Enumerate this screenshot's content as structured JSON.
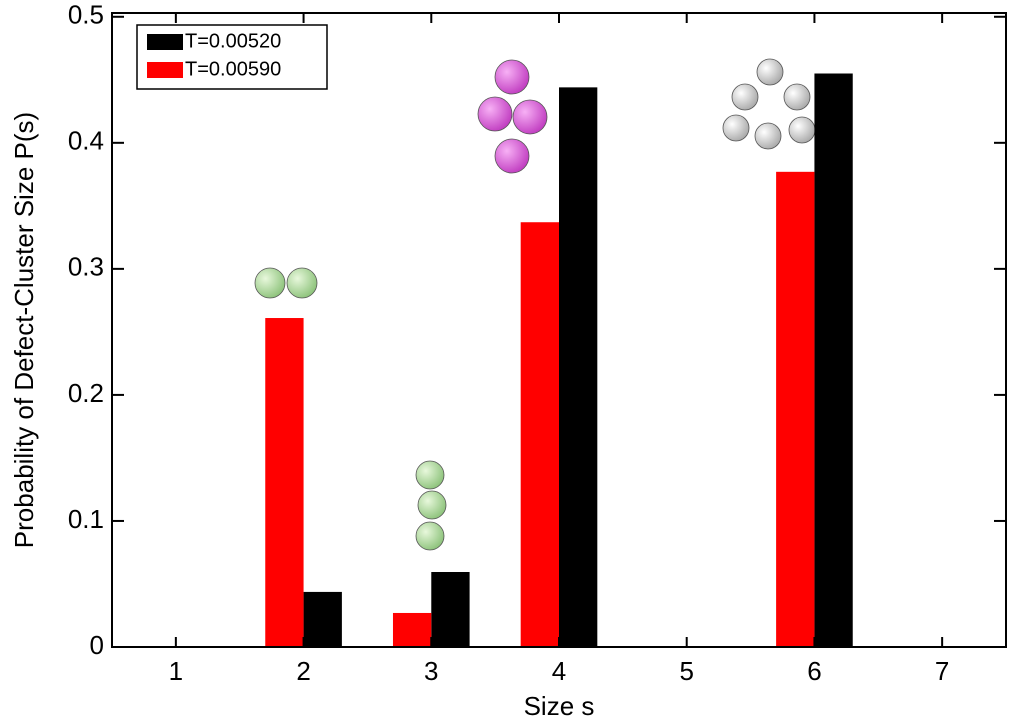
{
  "chart_data": {
    "type": "bar",
    "x_label": "Size s",
    "y_label": "Probability of Defect-Cluster Size P(s)",
    "x": [
      1,
      2,
      3,
      4,
      5,
      6,
      7
    ],
    "series": [
      {
        "name": "T=0.00520",
        "color": "#000000",
        "values": [
          0,
          0.0437,
          0.0595,
          0.444,
          0,
          0.455,
          0
        ]
      },
      {
        "name": "T=0.00590",
        "color": "#ff0000",
        "values": [
          0,
          0.261,
          0.027,
          0.337,
          0,
          0.377,
          0
        ]
      }
    ],
    "xlim": [
      0.5,
      7.5
    ],
    "xticks": [
      1,
      2,
      3,
      4,
      5,
      6,
      7
    ],
    "ylim": [
      0,
      0.503
    ],
    "yticks": [
      0,
      0.1,
      0.2,
      0.3,
      0.4,
      0.5
    ],
    "legend": "upper left"
  }
}
